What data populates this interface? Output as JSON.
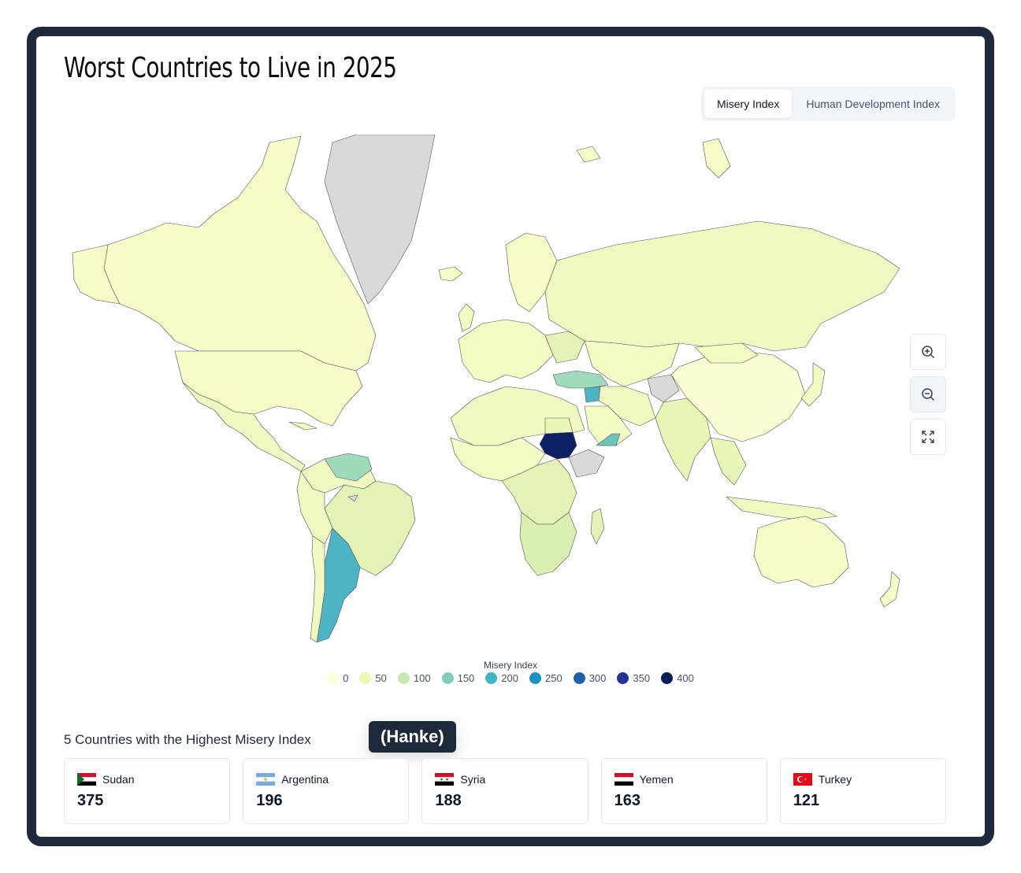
{
  "title": "Worst Countries to Live in 2025",
  "tabs": [
    {
      "label": "Misery Index",
      "active": true
    },
    {
      "label": "Human Development Index",
      "active": false
    }
  ],
  "map": {
    "metric": "Misery Index",
    "no_data_color": "#d9d9d9",
    "border_color": "#444444",
    "highlighted": [
      {
        "country": "Sudan",
        "value": 375,
        "color": "#0c1f63"
      },
      {
        "country": "Argentina",
        "value": 196,
        "color": "#4cb4c3"
      },
      {
        "country": "Syria",
        "value": 188,
        "color": "#4cb4c3"
      },
      {
        "country": "Yemen",
        "value": 163,
        "color": "#6cc5bd"
      },
      {
        "country": "Turkey",
        "value": 121,
        "color": "#9fdbbb"
      }
    ]
  },
  "zoom_controls": [
    "zoom-in-icon",
    "zoom-out-icon",
    "fit-screen-icon"
  ],
  "legend": {
    "title": "Misery Index",
    "items": [
      {
        "label": "0",
        "color": "#ffffd9"
      },
      {
        "label": "50",
        "color": "#edf8b1"
      },
      {
        "label": "100",
        "color": "#c7e9b4"
      },
      {
        "label": "150",
        "color": "#7fcdbb"
      },
      {
        "label": "200",
        "color": "#41b6c4"
      },
      {
        "label": "250",
        "color": "#1d91c0"
      },
      {
        "label": "300",
        "color": "#225ea8"
      },
      {
        "label": "350",
        "color": "#253494"
      },
      {
        "label": "400",
        "color": "#081d58"
      }
    ]
  },
  "section_title": "5 Countries with the Highest Misery Index",
  "tooltip": "(Hanke)",
  "top5": [
    {
      "country": "Sudan",
      "value": "375",
      "flag": "sudan"
    },
    {
      "country": "Argentina",
      "value": "196",
      "flag": "argentina"
    },
    {
      "country": "Syria",
      "value": "188",
      "flag": "syria"
    },
    {
      "country": "Yemen",
      "value": "163",
      "flag": "yemen"
    },
    {
      "country": "Turkey",
      "value": "121",
      "flag": "turkey"
    }
  ]
}
